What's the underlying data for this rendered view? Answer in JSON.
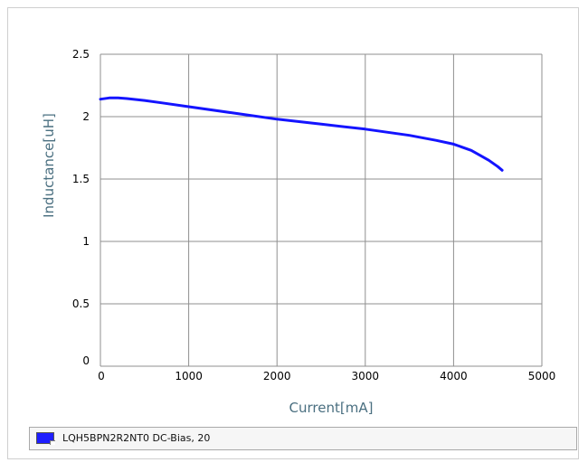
{
  "colors": {
    "axis_label": "#4a6f80",
    "series": "#1414ff",
    "grid": "#8f8f8f"
  },
  "chart_data": {
    "type": "line",
    "xlabel": "Current[mA]",
    "ylabel": "Inductance[uH]",
    "xlim": [
      0,
      5000
    ],
    "ylim": [
      0,
      2.5
    ],
    "x_ticks": [
      "0",
      "1000",
      "2000",
      "3000",
      "4000",
      "5000"
    ],
    "y_ticks": [
      "0",
      "0.5",
      "1",
      "1.5",
      "2",
      "2.5"
    ],
    "grid": true,
    "legend_position": "bottom",
    "series": [
      {
        "name": "LQH5BPN2R2NT0  DC-Bias, 20",
        "x": [
          0,
          100,
          200,
          300,
          500,
          700,
          1000,
          1500,
          2000,
          2500,
          3000,
          3500,
          3800,
          4000,
          4200,
          4300,
          4400,
          4500,
          4550
        ],
        "y": [
          2.14,
          2.15,
          2.15,
          2.145,
          2.13,
          2.11,
          2.08,
          2.03,
          1.98,
          1.94,
          1.9,
          1.85,
          1.81,
          1.78,
          1.73,
          1.69,
          1.65,
          1.6,
          1.57
        ]
      }
    ]
  }
}
